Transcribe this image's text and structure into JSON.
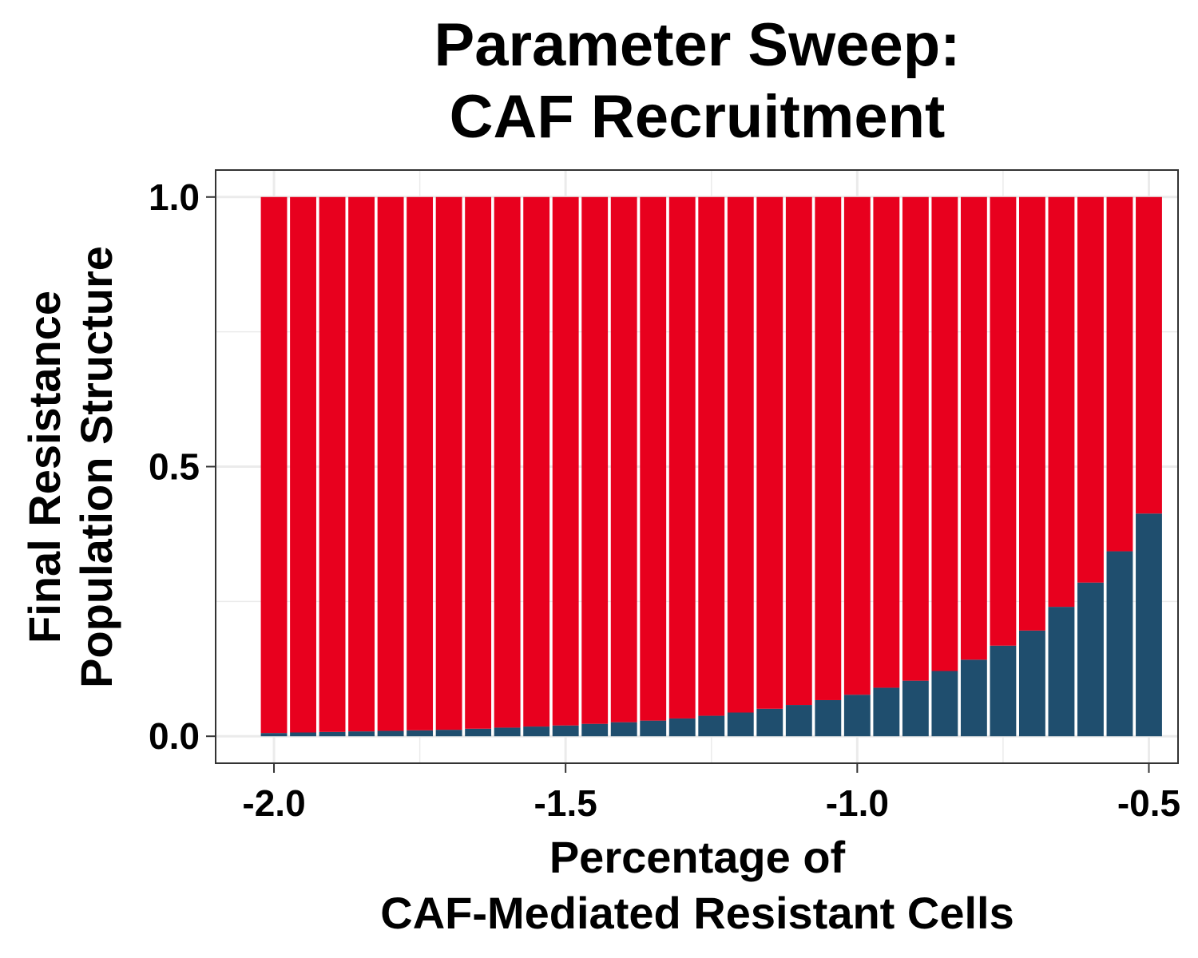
{
  "chart_data": {
    "type": "bar",
    "stacked": true,
    "title_lines": [
      "Parameter Sweep:",
      "CAF Recruitment"
    ],
    "xlabel_lines": [
      "Percentage of",
      "CAF-Mediated Resistant Cells"
    ],
    "ylabel_lines": [
      "Final Resistance",
      "Population Structure"
    ],
    "x": [
      -2.0,
      -1.95,
      -1.9,
      -1.85,
      -1.8,
      -1.75,
      -1.7,
      -1.65,
      -1.6,
      -1.55,
      -1.5,
      -1.45,
      -1.4,
      -1.35,
      -1.3,
      -1.25,
      -1.2,
      -1.15,
      -1.1,
      -1.05,
      -1.0,
      -0.95,
      -0.9,
      -0.85,
      -0.8,
      -0.75,
      -0.7,
      -0.65,
      -0.6,
      -0.55,
      -0.5
    ],
    "series": [
      {
        "color": "#1f4e6e",
        "values": [
          0.006,
          0.007,
          0.008,
          0.009,
          0.01,
          0.011,
          0.012,
          0.014,
          0.016,
          0.018,
          0.02,
          0.023,
          0.026,
          0.029,
          0.033,
          0.038,
          0.044,
          0.051,
          0.058,
          0.067,
          0.077,
          0.09,
          0.103,
          0.121,
          0.142,
          0.168,
          0.196,
          0.24,
          0.285,
          0.343,
          0.413
        ]
      },
      {
        "color": "#e8001e",
        "values": [
          0.994,
          0.993,
          0.992,
          0.991,
          0.99,
          0.989,
          0.988,
          0.986,
          0.984,
          0.982,
          0.98,
          0.977,
          0.974,
          0.971,
          0.967,
          0.962,
          0.956,
          0.949,
          0.942,
          0.933,
          0.923,
          0.91,
          0.897,
          0.879,
          0.858,
          0.832,
          0.804,
          0.76,
          0.715,
          0.657,
          0.587
        ]
      }
    ],
    "xlim": [
      -2.1,
      -0.45
    ],
    "ylim": [
      -0.05,
      1.05
    ],
    "xticks": [
      -2.0,
      -1.5,
      -1.0,
      -0.5
    ],
    "xtick_labels": [
      "-2.0",
      "-1.5",
      "-1.0",
      "-0.5"
    ],
    "yticks": [
      0.0,
      0.5,
      1.0
    ],
    "ytick_labels": [
      "0.0",
      "0.5",
      "1.0"
    ],
    "grid": true,
    "legend": false
  }
}
